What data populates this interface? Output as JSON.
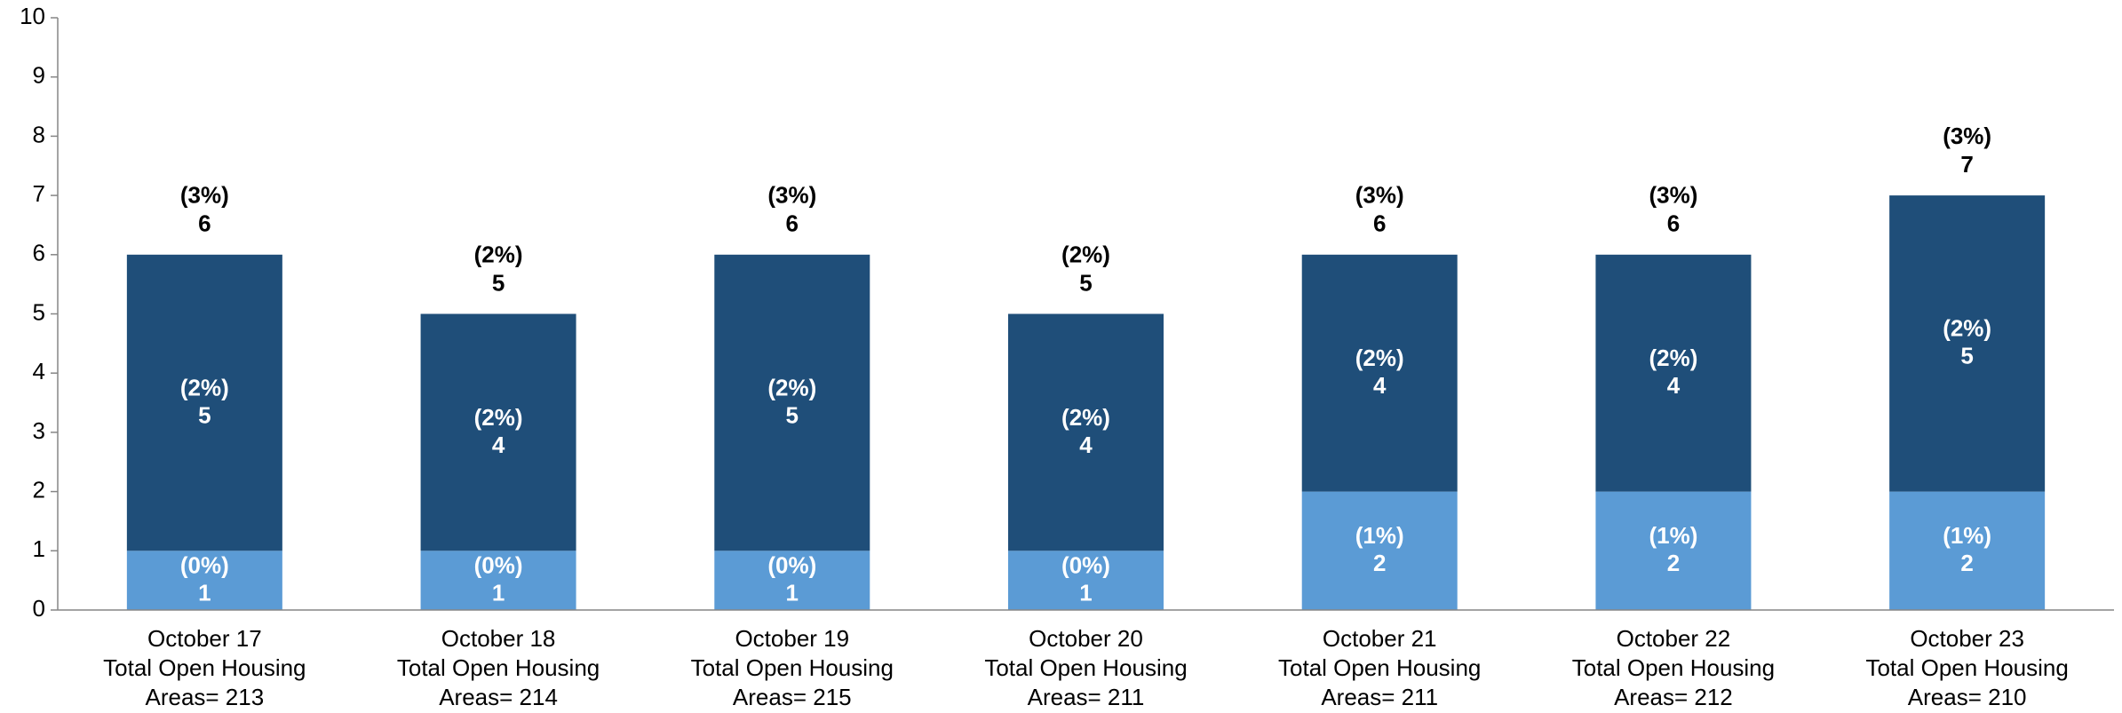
{
  "chart_data": {
    "type": "stacked_bar",
    "categories": [
      [
        "October 17",
        "Total Open Housing",
        "Areas= 213"
      ],
      [
        "October 18",
        "Total Open Housing",
        "Areas= 214"
      ],
      [
        "October 19",
        "Total Open Housing",
        "Areas= 215"
      ],
      [
        "October 20",
        "Total Open Housing",
        "Areas= 211"
      ],
      [
        "October 21",
        "Total Open Housing",
        "Areas= 211"
      ],
      [
        "October 22",
        "Total Open Housing",
        "Areas= 212"
      ],
      [
        "October 23",
        "Total Open Housing",
        "Areas= 210"
      ]
    ],
    "series": [
      {
        "color": "#5b9bd5",
        "values": [
          1,
          1,
          1,
          1,
          2,
          2,
          2
        ],
        "pct_labels": [
          "(0%)",
          "(0%)",
          "(0%)",
          "(0%)",
          "(1%)",
          "(1%)",
          "(1%)"
        ]
      },
      {
        "color": "#1f4e79",
        "values": [
          5,
          4,
          5,
          4,
          4,
          4,
          5
        ],
        "pct_labels": [
          "(2%)",
          "(2%)",
          "(2%)",
          "(2%)",
          "(2%)",
          "(2%)",
          "(2%)"
        ]
      }
    ],
    "totals": [
      6,
      5,
      6,
      5,
      6,
      6,
      7
    ],
    "total_pct_labels": [
      "(3%)",
      "(2%)",
      "(3%)",
      "(2%)",
      "(3%)",
      "(3%)",
      "(3%)"
    ],
    "ylim": [
      0,
      10
    ],
    "yticks": [
      0,
      1,
      2,
      3,
      4,
      5,
      6,
      7,
      8,
      9,
      10
    ],
    "grid": false
  }
}
